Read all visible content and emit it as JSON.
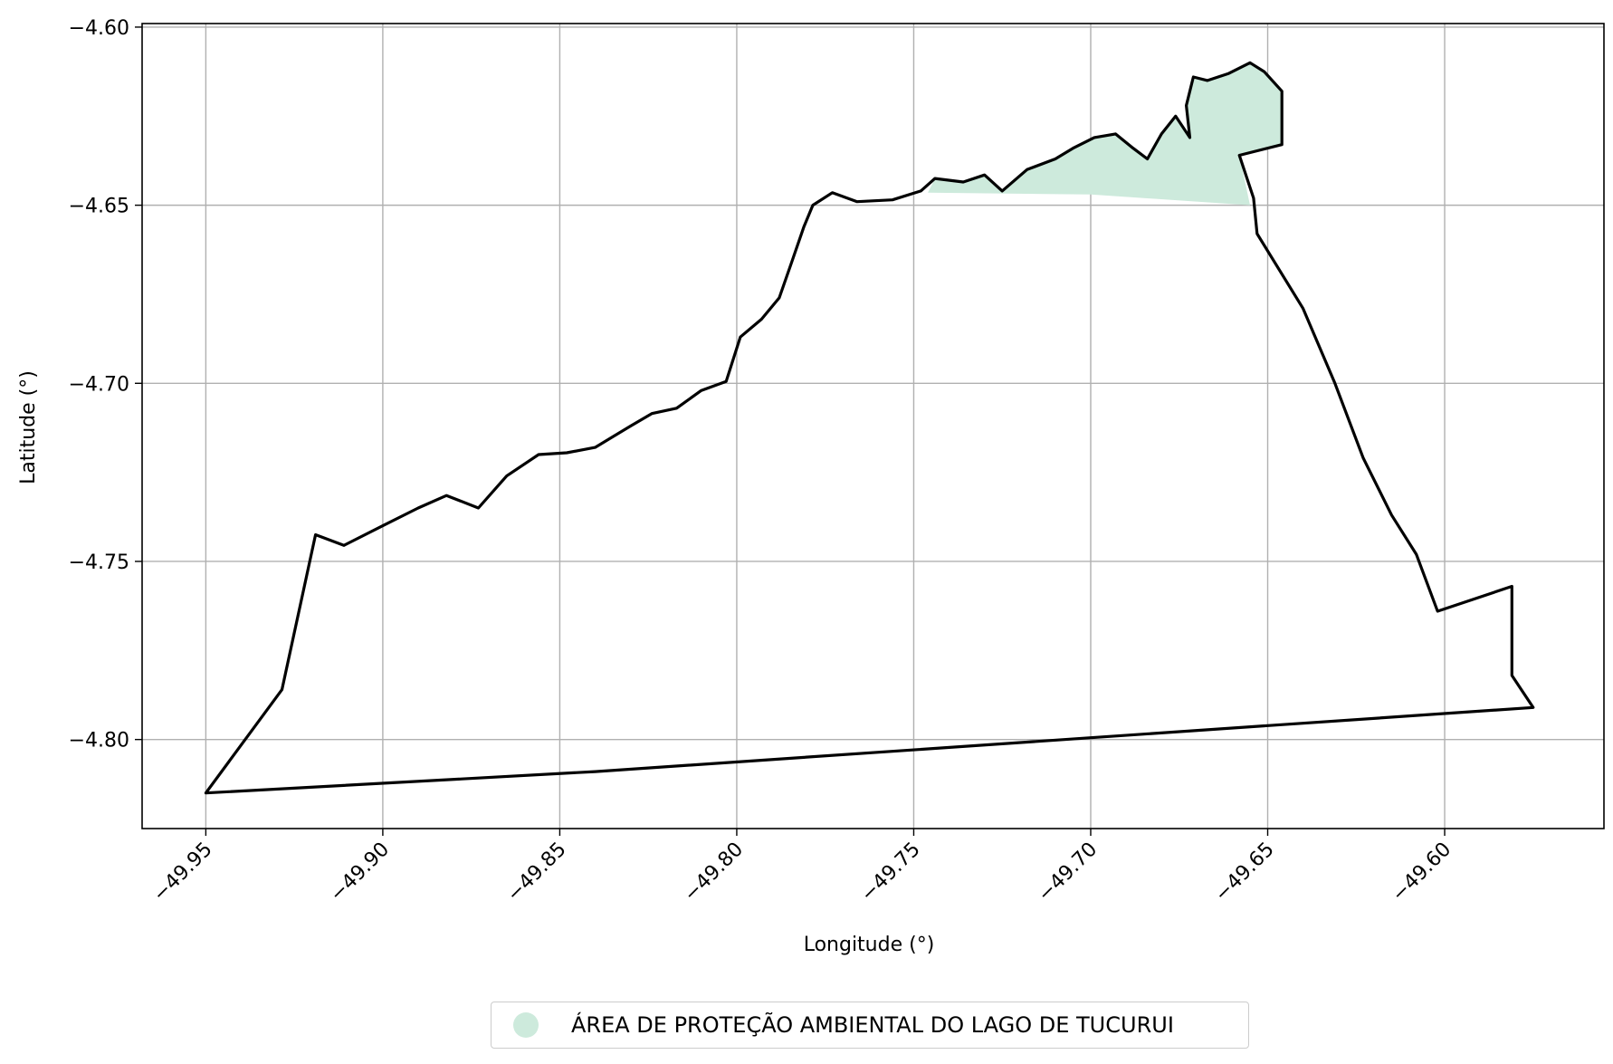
{
  "chart_data": {
    "type": "map",
    "xlabel": "Longitude (°)",
    "ylabel": "Latitude (°)",
    "xlim": [
      -49.968,
      -49.555
    ],
    "ylim": [
      -4.825,
      -4.599
    ],
    "x_ticks": [
      -49.95,
      -49.9,
      -49.85,
      -49.8,
      -49.75,
      -49.7,
      -49.65,
      -49.6
    ],
    "x_tick_labels": [
      "−49.95",
      "−49.90",
      "−49.85",
      "−49.80",
      "−49.75",
      "−49.70",
      "−49.65",
      "−49.60"
    ],
    "y_ticks": [
      -4.6,
      -4.65,
      -4.7,
      -4.75,
      -4.8
    ],
    "y_tick_labels": [
      "−4.60",
      "−4.65",
      "−4.70",
      "−4.75",
      "−4.80"
    ],
    "grid": true,
    "legend_placement": "bottom-center",
    "legend": [
      {
        "label": "ÁREA DE PROTEÇÃO AMBIENTAL DO LAGO DE TUCURUI",
        "color": "#cdeadc"
      }
    ],
    "boundary_color": "#000000",
    "fill_color": "#cdeadc",
    "boundary": [
      [
        -49.95,
        -4.815
      ],
      [
        -49.9285,
        -4.786
      ],
      [
        -49.919,
        -4.7425
      ],
      [
        -49.911,
        -4.7455
      ],
      [
        -49.9,
        -4.74
      ],
      [
        -49.89,
        -4.735
      ],
      [
        -49.882,
        -4.7315
      ],
      [
        -49.873,
        -4.735
      ],
      [
        -49.865,
        -4.726
      ],
      [
        -49.856,
        -4.72
      ],
      [
        -49.848,
        -4.7195
      ],
      [
        -49.84,
        -4.718
      ],
      [
        -49.835,
        -4.715
      ],
      [
        -49.83,
        -4.712
      ],
      [
        -49.824,
        -4.7085
      ],
      [
        -49.817,
        -4.707
      ],
      [
        -49.81,
        -4.702
      ],
      [
        -49.803,
        -4.6995
      ],
      [
        -49.799,
        -4.687
      ],
      [
        -49.793,
        -4.682
      ],
      [
        -49.788,
        -4.676
      ],
      [
        -49.7845,
        -4.666
      ],
      [
        -49.781,
        -4.656
      ],
      [
        -49.7785,
        -4.65
      ],
      [
        -49.773,
        -4.6465
      ],
      [
        -49.766,
        -4.649
      ],
      [
        -49.756,
        -4.6485
      ],
      [
        -49.748,
        -4.646
      ],
      [
        -49.744,
        -4.6425
      ],
      [
        -49.736,
        -4.6435
      ],
      [
        -49.73,
        -4.6415
      ],
      [
        -49.725,
        -4.646
      ],
      [
        -49.718,
        -4.64
      ],
      [
        -49.71,
        -4.637
      ],
      [
        -49.705,
        -4.634
      ],
      [
        -49.699,
        -4.631
      ],
      [
        -49.693,
        -4.63
      ],
      [
        -49.688,
        -4.634
      ],
      [
        -49.684,
        -4.637
      ],
      [
        -49.68,
        -4.63
      ],
      [
        -49.676,
        -4.625
      ],
      [
        -49.672,
        -4.631
      ],
      [
        -49.673,
        -4.622
      ],
      [
        -49.671,
        -4.614
      ],
      [
        -49.667,
        -4.615
      ],
      [
        -49.661,
        -4.613
      ],
      [
        -49.655,
        -4.61
      ],
      [
        -49.651,
        -4.6125
      ],
      [
        -49.646,
        -4.618
      ],
      [
        -49.646,
        -4.633
      ],
      [
        -49.658,
        -4.636
      ],
      [
        -49.654,
        -4.648
      ],
      [
        -49.653,
        -4.658
      ],
      [
        -49.64,
        -4.679
      ],
      [
        -49.631,
        -4.7
      ],
      [
        -49.623,
        -4.721
      ],
      [
        -49.615,
        -4.737
      ],
      [
        -49.608,
        -4.748
      ],
      [
        -49.602,
        -4.764
      ],
      [
        -49.581,
        -4.757
      ],
      [
        -49.581,
        -4.782
      ],
      [
        -49.575,
        -4.791
      ],
      [
        -49.7,
        -4.7995
      ],
      [
        -49.84,
        -4.809
      ],
      [
        -49.95,
        -4.815
      ]
    ],
    "protected_area": [
      [
        -49.746,
        -4.6465
      ],
      [
        -49.744,
        -4.6425
      ],
      [
        -49.736,
        -4.6435
      ],
      [
        -49.73,
        -4.6415
      ],
      [
        -49.725,
        -4.646
      ],
      [
        -49.718,
        -4.64
      ],
      [
        -49.71,
        -4.637
      ],
      [
        -49.705,
        -4.634
      ],
      [
        -49.699,
        -4.631
      ],
      [
        -49.693,
        -4.63
      ],
      [
        -49.688,
        -4.634
      ],
      [
        -49.684,
        -4.637
      ],
      [
        -49.68,
        -4.63
      ],
      [
        -49.676,
        -4.625
      ],
      [
        -49.672,
        -4.631
      ],
      [
        -49.673,
        -4.622
      ],
      [
        -49.671,
        -4.614
      ],
      [
        -49.667,
        -4.615
      ],
      [
        -49.661,
        -4.613
      ],
      [
        -49.655,
        -4.61
      ],
      [
        -49.651,
        -4.6125
      ],
      [
        -49.646,
        -4.618
      ],
      [
        -49.646,
        -4.633
      ],
      [
        -49.658,
        -4.636
      ],
      [
        -49.655,
        -4.65
      ],
      [
        -49.7,
        -4.647
      ],
      [
        -49.746,
        -4.6465
      ]
    ]
  }
}
